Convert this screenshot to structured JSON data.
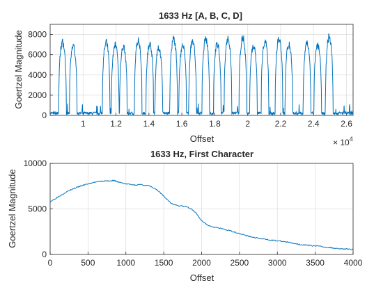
{
  "chart_data": [
    {
      "type": "line",
      "title": "1633 Hz [A, B, C, D]",
      "xlabel": "Offset",
      "ylabel": "Goertzel Magnitude",
      "xlim": [
        8000,
        26400
      ],
      "ylim": [
        0,
        9000
      ],
      "x_exponent_label": "× 10",
      "x_exponent_power": "4",
      "xticks": [
        10000,
        12000,
        14000,
        16000,
        18000,
        20000,
        22000,
        24000,
        26000
      ],
      "xtick_labels": [
        "1",
        "1.2",
        "1.4",
        "1.6",
        "1.8",
        "2",
        "2.2",
        "2.4",
        "2.6"
      ],
      "yticks": [
        0,
        2000,
        4000,
        6000,
        8000
      ],
      "ytick_labels": [
        "0",
        "2000",
        "4000",
        "6000",
        "8000"
      ],
      "grid": true,
      "series": [
        {
          "color": "#0072BD",
          "pulses": [
            {
              "center": 8750,
              "peak": 7600
            },
            {
              "center": 9400,
              "peak": 7200
            },
            {
              "center": 11400,
              "peak": 7600
            },
            {
              "center": 11950,
              "peak": 7300
            },
            {
              "center": 12450,
              "peak": 7100
            },
            {
              "center": 13350,
              "peak": 7800
            },
            {
              "center": 14050,
              "peak": 7400
            },
            {
              "center": 14600,
              "peak": 7000
            },
            {
              "center": 15500,
              "peak": 8000
            },
            {
              "center": 16050,
              "peak": 7200
            },
            {
              "center": 16650,
              "peak": 7700
            },
            {
              "center": 17450,
              "peak": 7900
            },
            {
              "center": 18150,
              "peak": 7400
            },
            {
              "center": 18800,
              "peak": 7900
            },
            {
              "center": 19700,
              "peak": 8100
            },
            {
              "center": 20350,
              "peak": 7200
            },
            {
              "center": 21050,
              "peak": 7700
            },
            {
              "center": 21900,
              "peak": 8000
            },
            {
              "center": 22500,
              "peak": 7400
            },
            {
              "center": 23600,
              "peak": 7500
            },
            {
              "center": 24250,
              "peak": 7300
            },
            {
              "center": 24950,
              "peak": 8200
            }
          ],
          "noise_floor": 200
        }
      ]
    },
    {
      "type": "line",
      "title": "1633 Hz, First Character",
      "xlabel": "Offset",
      "ylabel": "Goertzel Magnitude",
      "xlim": [
        0,
        4000
      ],
      "ylim": [
        0,
        10000
      ],
      "xticks": [
        0,
        500,
        1000,
        1500,
        2000,
        2500,
        3000,
        3500,
        4000
      ],
      "xtick_labels": [
        "0",
        "500",
        "1000",
        "1500",
        "2000",
        "2500",
        "3000",
        "3500",
        "4000"
      ],
      "yticks": [
        0,
        5000,
        10000
      ],
      "ytick_labels": [
        "0",
        "5000",
        "10000"
      ],
      "grid": true,
      "series": [
        {
          "color": "#0072BD",
          "x": [
            0,
            100,
            200,
            300,
            400,
            500,
            600,
            700,
            800,
            850,
            900,
            1000,
            1100,
            1200,
            1300,
            1400,
            1500,
            1600,
            1700,
            1800,
            1900,
            2000,
            2100,
            2200,
            2300,
            2400,
            2500,
            2600,
            2700,
            2800,
            2900,
            3000,
            3100,
            3200,
            3300,
            3400,
            3500,
            3600,
            3700,
            3800,
            3900,
            4000
          ],
          "y": [
            5800,
            6300,
            6800,
            7200,
            7500,
            7750,
            7950,
            8050,
            8100,
            8100,
            7950,
            7750,
            7650,
            7650,
            7550,
            7150,
            6400,
            5600,
            5350,
            5250,
            4800,
            3700,
            3150,
            2950,
            2750,
            2550,
            2300,
            2050,
            1850,
            1700,
            1600,
            1500,
            1400,
            1250,
            1100,
            1000,
            950,
            850,
            750,
            650,
            600,
            550
          ]
        }
      ]
    }
  ]
}
